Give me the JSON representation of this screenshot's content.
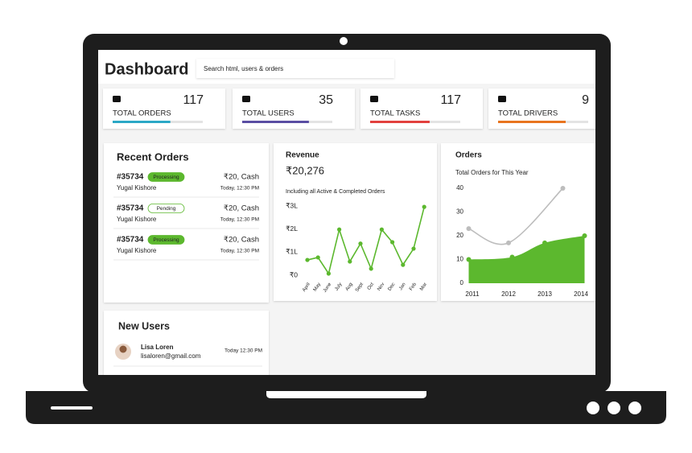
{
  "header": {
    "title": "Dashboard",
    "search_placeholder": "Search html, users & orders"
  },
  "stats": [
    {
      "label": "TOTAL ORDERS",
      "value": 117,
      "color": "#2ba8c6",
      "progress": 0.64
    },
    {
      "label": "TOTAL USERS",
      "value": 35,
      "color": "#5a4ea3",
      "progress": 0.74
    },
    {
      "label": "TOTAL TASKS",
      "value": 117,
      "color": "#e2413e",
      "progress": 0.66
    },
    {
      "label": "TOTAL DRIVERS",
      "value": 9,
      "color": "#e8741f",
      "progress": 0.75
    }
  ],
  "recent_orders": {
    "title": "Recent Orders",
    "rows": [
      {
        "id": "#35734",
        "status": "Processing",
        "amount": "₹20, Cash",
        "customer": "Yugal Kishore",
        "time": "Today, 12:30 PM"
      },
      {
        "id": "#35734",
        "status": "Pending",
        "amount": "₹20, Cash",
        "customer": "Yugal Kishore",
        "time": "Today, 12:30 PM"
      },
      {
        "id": "#35734",
        "status": "Processing",
        "amount": "₹20, Cash",
        "customer": "Yugal Kishore",
        "time": "Today, 12:30 PM"
      }
    ]
  },
  "new_users": {
    "title": "New Users",
    "rows": [
      {
        "name": "Lisa Loren",
        "email": "lisaloren@gmail.com",
        "time": "Today 12:30 PM"
      }
    ]
  },
  "chart_data": [
    {
      "type": "line",
      "title": "Revenue",
      "total": "₹20,276",
      "subtitle": "Including all Active & Completed Orders",
      "categories": [
        "April",
        "May",
        "June",
        "July",
        "Aug",
        "Sept",
        "Oct",
        "Nov",
        "Dec",
        "Jan",
        "Feb",
        "Mar"
      ],
      "values": [
        0.66,
        0.77,
        0.07,
        1.98,
        0.59,
        1.37,
        0.28,
        1.98,
        1.43,
        0.45,
        1.15,
        2.96
      ],
      "color": "#5cb82e",
      "ylim": [
        0,
        3
      ],
      "yticks": [
        {
          "value": 0,
          "label": "₹0"
        },
        {
          "value": 1,
          "label": "₹1L"
        },
        {
          "value": 2,
          "label": "₹2L"
        },
        {
          "value": 3,
          "label": "₹3L"
        }
      ]
    },
    {
      "type": "area",
      "title": "Orders",
      "subtitle": "Total Orders for This Year",
      "xlim": [
        2010.8,
        2014.2
      ],
      "xticks": [
        2011,
        2012,
        2013,
        2014
      ],
      "ylim": [
        0,
        40
      ],
      "yticks": [
        0,
        10,
        20,
        30,
        40
      ],
      "series": [
        {
          "color": "#bdbdbd",
          "fill": false,
          "x": [
            2010.9,
            2012,
            2013.5
          ],
          "values": [
            23,
            17,
            40
          ]
        },
        {
          "color": "#5cb82e",
          "fill": true,
          "x": [
            2010.9,
            2012.1,
            2013,
            2014.1
          ],
          "values": [
            10,
            11,
            17,
            20
          ]
        }
      ]
    }
  ]
}
